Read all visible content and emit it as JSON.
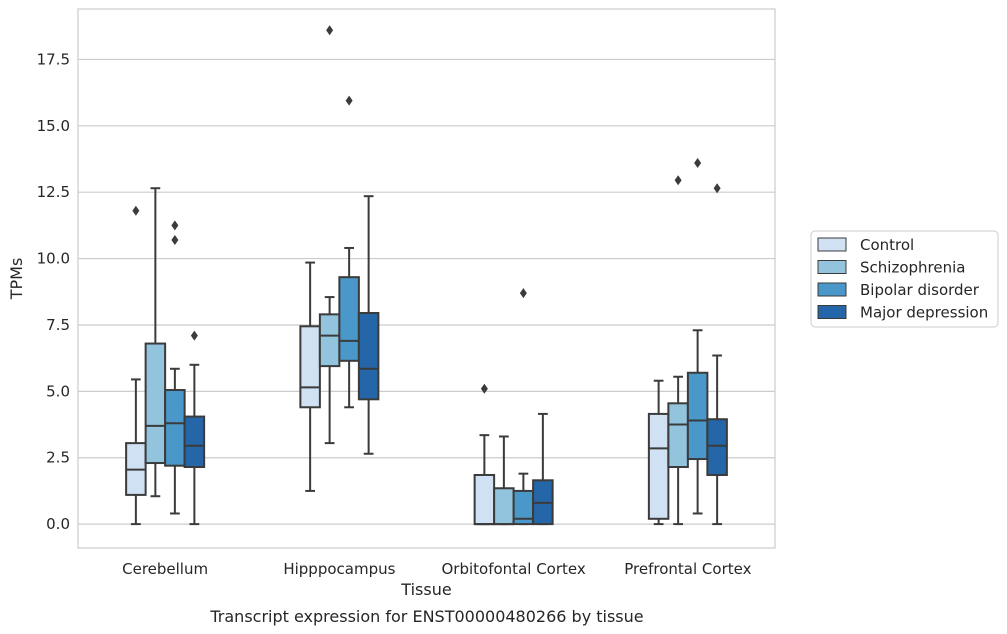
{
  "chart_data": {
    "type": "box",
    "title": "",
    "caption": "Transcript expression for ENST00000480266 by tissue",
    "xlabel": "Tissue",
    "ylabel": "TPMs",
    "ylim": [
      -0.9,
      19.4
    ],
    "yticks": [
      0.0,
      2.5,
      5.0,
      7.5,
      10.0,
      12.5,
      15.0,
      17.5
    ],
    "ytick_labels": [
      "0.0",
      "2.5",
      "5.0",
      "7.5",
      "10.0",
      "12.5",
      "15.0",
      "17.5"
    ],
    "grid": "horizontal",
    "legend_position": "right",
    "categories": [
      "Cerebellum",
      "Hipppocampus",
      "Orbitofontal Cortex",
      "Prefrontal Cortex"
    ],
    "series": [
      {
        "name": "Control",
        "color": "#cfe1f2",
        "boxes": [
          {
            "whislo": 0.0,
            "q1": 1.1,
            "median": 2.05,
            "q3": 3.05,
            "whishi": 5.45,
            "fliers": [
              11.8
            ]
          },
          {
            "whislo": 1.25,
            "q1": 4.4,
            "median": 5.15,
            "q3": 7.45,
            "whishi": 9.85,
            "fliers": []
          },
          {
            "whislo": 0.0,
            "q1": 0.0,
            "median": 0.0,
            "q3": 1.85,
            "whishi": 3.35,
            "fliers": [
              5.1
            ]
          },
          {
            "whislo": 0.0,
            "q1": 0.2,
            "median": 2.85,
            "q3": 4.15,
            "whishi": 5.4,
            "fliers": []
          }
        ]
      },
      {
        "name": "Schizophrenia",
        "color": "#93c4de",
        "boxes": [
          {
            "whislo": 1.05,
            "q1": 2.3,
            "median": 3.7,
            "q3": 6.8,
            "whishi": 12.65,
            "fliers": []
          },
          {
            "whislo": 3.05,
            "q1": 5.95,
            "median": 7.1,
            "q3": 7.9,
            "whishi": 8.55,
            "fliers": [
              18.6
            ]
          },
          {
            "whislo": 0.0,
            "q1": 0.0,
            "median": 0.0,
            "q3": 1.35,
            "whishi": 3.3,
            "fliers": []
          },
          {
            "whislo": 0.0,
            "q1": 2.15,
            "median": 3.75,
            "q3": 4.55,
            "whishi": 5.55,
            "fliers": [
              12.95
            ]
          }
        ]
      },
      {
        "name": "Bipolar disorder",
        "color": "#4a98c9",
        "boxes": [
          {
            "whislo": 0.4,
            "q1": 2.2,
            "median": 3.8,
            "q3": 5.05,
            "whishi": 5.85,
            "fliers": [
              10.7,
              11.25
            ]
          },
          {
            "whislo": 4.4,
            "q1": 6.15,
            "median": 6.9,
            "q3": 9.3,
            "whishi": 10.4,
            "fliers": [
              15.95
            ]
          },
          {
            "whislo": 0.0,
            "q1": 0.0,
            "median": 0.2,
            "q3": 1.25,
            "whishi": 1.9,
            "fliers": [
              8.7
            ]
          },
          {
            "whislo": 0.4,
            "q1": 2.45,
            "median": 3.9,
            "q3": 5.7,
            "whishi": 7.3,
            "fliers": [
              13.6
            ]
          }
        ]
      },
      {
        "name": "Major depression",
        "color": "#2566a8",
        "boxes": [
          {
            "whislo": 0.0,
            "q1": 2.15,
            "median": 2.95,
            "q3": 4.05,
            "whishi": 6.0,
            "fliers": [
              7.1
            ]
          },
          {
            "whislo": 2.65,
            "q1": 4.7,
            "median": 5.85,
            "q3": 7.95,
            "whishi": 12.35,
            "fliers": []
          },
          {
            "whislo": 0.0,
            "q1": 0.0,
            "median": 0.8,
            "q3": 1.65,
            "whishi": 4.15,
            "fliers": []
          },
          {
            "whislo": 0.0,
            "q1": 1.85,
            "median": 2.95,
            "q3": 3.95,
            "whishi": 6.35,
            "fliers": [
              12.65
            ]
          }
        ]
      }
    ]
  }
}
